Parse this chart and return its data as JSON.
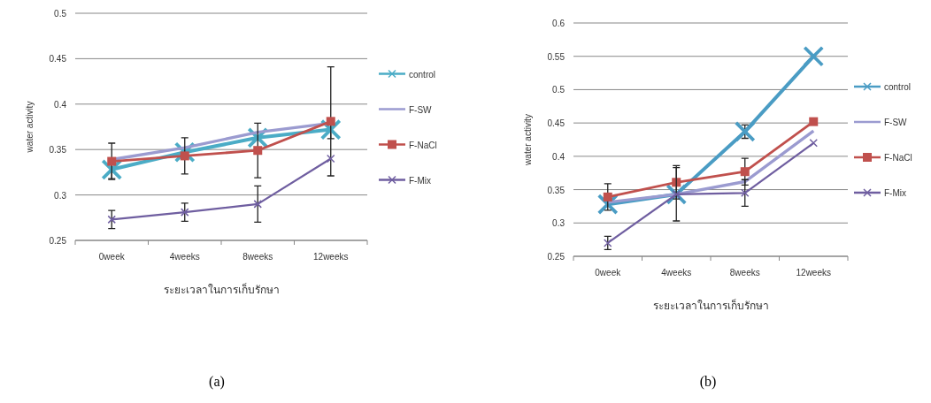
{
  "chart_data": [
    {
      "type": "line",
      "xlabel": "ระยะเวลาในการเก็บรักษา",
      "ylabel": "water activity",
      "categories": [
        "0week",
        "4weeks",
        "8weeks",
        "12weeks"
      ],
      "ylim": [
        0.25,
        0.5
      ],
      "yticks": [
        0.25,
        0.3,
        0.35,
        0.4,
        0.45,
        0.5
      ],
      "grid": "y",
      "legend": "right",
      "annotations": [
        "(a)"
      ],
      "series": [
        {
          "name": "control",
          "color": "#4bacc6",
          "marker": "cross",
          "values": [
            0.328,
            0.347,
            0.363,
            0.372
          ],
          "errors": [
            0.01,
            null,
            null,
            0.01
          ]
        },
        {
          "name": "F-SW",
          "color": "#9b9bd0",
          "marker": "none",
          "values": [
            0.339,
            0.352,
            0.369,
            0.379
          ],
          "errors": [
            null,
            null,
            null,
            null
          ]
        },
        {
          "name": "F-NaCl",
          "color": "#c0504d",
          "marker": "square",
          "values": [
            0.337,
            0.343,
            0.349,
            0.381
          ],
          "errors": [
            0.02,
            0.02,
            0.03,
            0.06
          ]
        },
        {
          "name": "F-Mix",
          "color": "#6f5ea0",
          "marker": "cross",
          "values": [
            0.273,
            0.281,
            0.29,
            0.34
          ],
          "errors": [
            0.01,
            0.01,
            0.02,
            null
          ]
        }
      ]
    },
    {
      "type": "line",
      "xlabel": "ระยะเวลาในการเก็บรักษา",
      "ylabel": "water activity",
      "categories": [
        "0week",
        "4weeks",
        "8weeks",
        "12weeks"
      ],
      "ylim": [
        0.25,
        0.6
      ],
      "yticks": [
        0.25,
        0.3,
        0.35,
        0.4,
        0.45,
        0.5,
        0.55,
        0.6
      ],
      "grid": "y",
      "legend": "right",
      "annotations": [
        "(b)"
      ],
      "series": [
        {
          "name": "control",
          "color": "#4a9cc4",
          "marker": "cross",
          "values": [
            0.328,
            0.343,
            0.437,
            0.55
          ],
          "errors": [
            null,
            null,
            0.01,
            null
          ]
        },
        {
          "name": "F-SW",
          "color": "#9b9bd0",
          "marker": "none",
          "values": [
            0.331,
            0.343,
            0.362,
            0.438
          ],
          "errors": [
            null,
            null,
            null,
            null
          ]
        },
        {
          "name": "F-NaCl",
          "color": "#c0504d",
          "marker": "square",
          "values": [
            0.339,
            0.361,
            0.377,
            0.452
          ],
          "errors": [
            0.02,
            0.025,
            0.02,
            null
          ]
        },
        {
          "name": "F-Mix",
          "color": "#6f5ea0",
          "marker": "cross",
          "values": [
            0.27,
            0.343,
            0.345,
            0.42
          ],
          "errors": [
            0.01,
            0.04,
            0.02,
            null
          ]
        }
      ]
    }
  ]
}
